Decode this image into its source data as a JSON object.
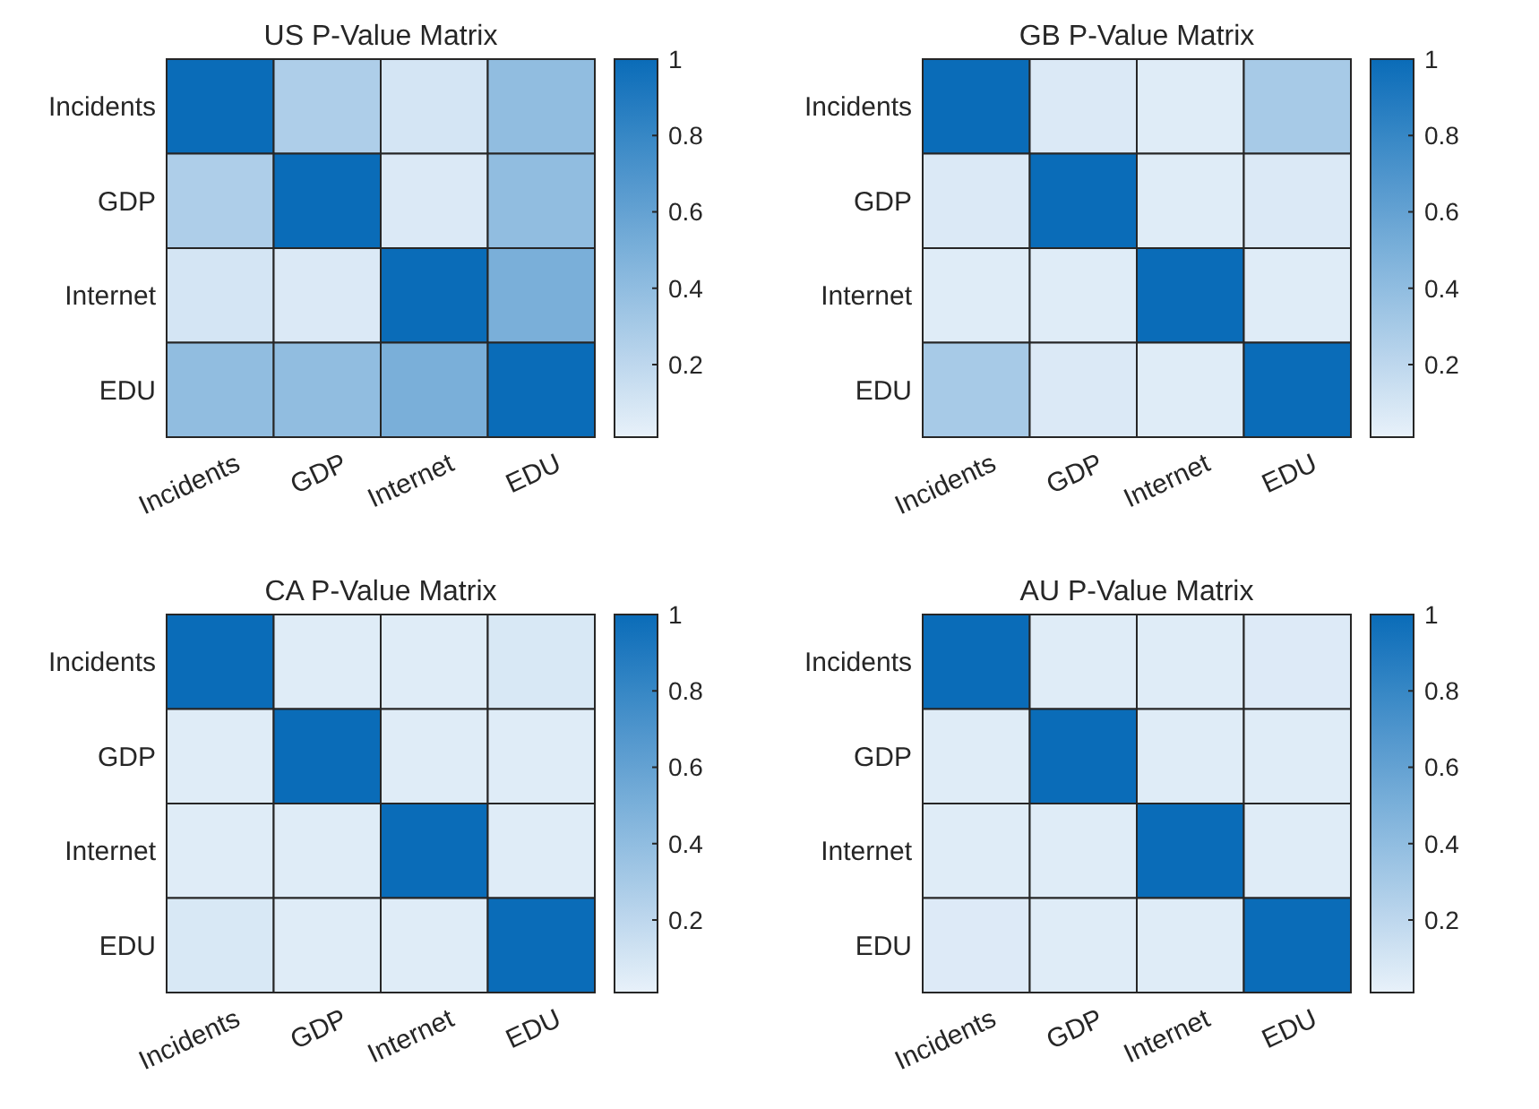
{
  "chart_data": [
    {
      "type": "heatmap",
      "title": "US P-Value Matrix",
      "categories": [
        "Incidents",
        "GDP",
        "Internet",
        "EDU"
      ],
      "y_categories": [
        "Incidents",
        "GDP",
        "Internet",
        "EDU"
      ],
      "cells": [
        [
          1,
          0.27,
          0.1,
          0.4
        ],
        [
          0.27,
          1,
          0.07,
          0.4
        ],
        [
          0.1,
          0.07,
          1,
          0.5
        ],
        [
          0.4,
          0.4,
          0.5,
          1
        ]
      ],
      "clim": [
        0.01,
        1
      ],
      "cticks": [
        0.2,
        0.4,
        0.6,
        0.8,
        1
      ]
    },
    {
      "type": "heatmap",
      "title": "GB P-Value Matrix",
      "categories": [
        "Incidents",
        "GDP",
        "Internet",
        "EDU"
      ],
      "y_categories": [
        "Incidents",
        "GDP",
        "Internet",
        "EDU"
      ],
      "cells": [
        [
          1,
          0.07,
          0.05,
          0.3
        ],
        [
          0.07,
          1,
          0.05,
          0.07
        ],
        [
          0.05,
          0.05,
          1,
          0.05
        ],
        [
          0.3,
          0.07,
          0.05,
          1
        ]
      ],
      "clim": [
        0.01,
        1
      ],
      "cticks": [
        0.2,
        0.4,
        0.6,
        0.8,
        1
      ]
    },
    {
      "type": "heatmap",
      "title": "CA P-Value Matrix",
      "categories": [
        "Incidents",
        "GDP",
        "Internet",
        "EDU"
      ],
      "y_categories": [
        "Incidents",
        "GDP",
        "Internet",
        "EDU"
      ],
      "cells": [
        [
          1,
          0.05,
          0.05,
          0.08
        ],
        [
          0.05,
          1,
          0.05,
          0.05
        ],
        [
          0.05,
          0.05,
          1,
          0.05
        ],
        [
          0.08,
          0.05,
          0.05,
          1
        ]
      ],
      "clim": [
        0.01,
        1
      ],
      "cticks": [
        0.2,
        0.4,
        0.6,
        0.8,
        1
      ]
    },
    {
      "type": "heatmap",
      "title": "AU P-Value Matrix",
      "categories": [
        "Incidents",
        "GDP",
        "Internet",
        "EDU"
      ],
      "y_categories": [
        "Incidents",
        "GDP",
        "Internet",
        "EDU"
      ],
      "cells": [
        [
          1,
          0.05,
          0.05,
          0.06
        ],
        [
          0.05,
          1,
          0.05,
          0.05
        ],
        [
          0.05,
          0.05,
          1,
          0.05
        ],
        [
          0.06,
          0.05,
          0.05,
          1
        ]
      ],
      "clim": [
        0.01,
        1
      ],
      "cticks": [
        0.2,
        0.4,
        0.6,
        0.8,
        1
      ]
    }
  ]
}
